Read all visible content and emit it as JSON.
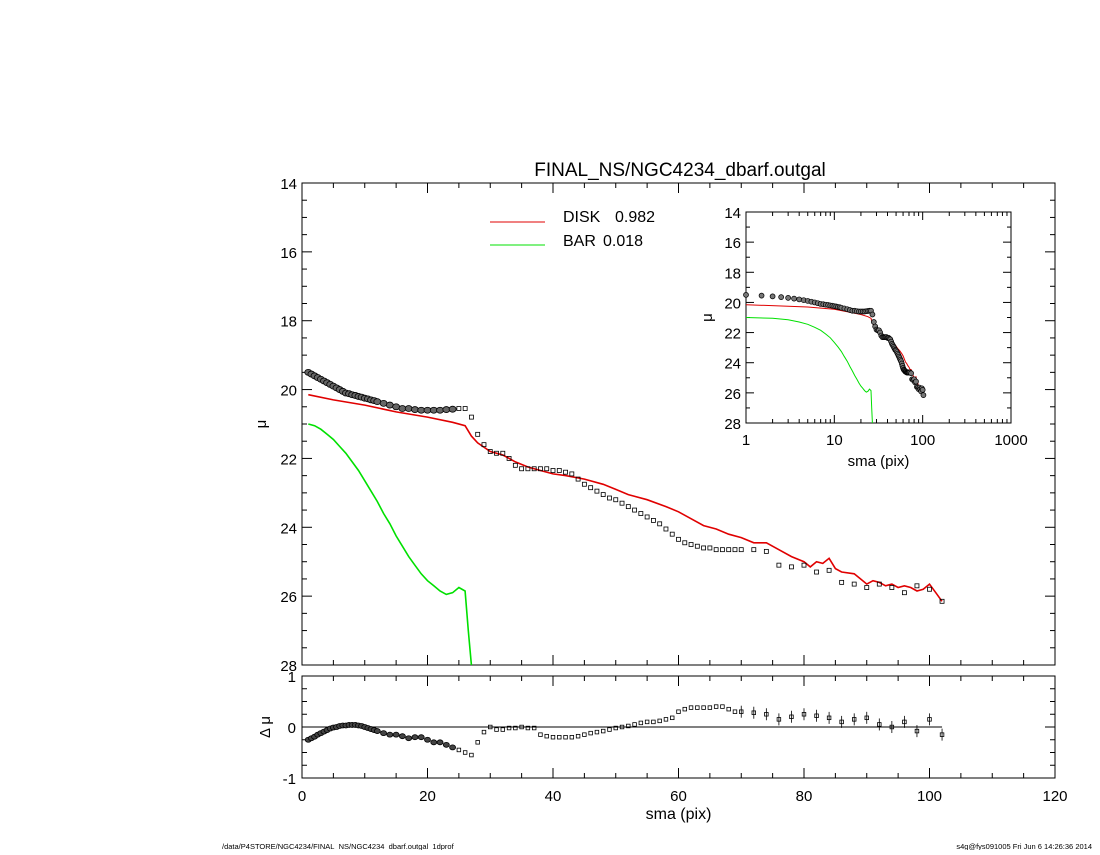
{
  "colors": {
    "disk": "#e00000",
    "bar": "#00e000",
    "data": "#000000",
    "frame": "#000000"
  },
  "footer": {
    "left": "/data/P4STORE/NGC4234/FINAL_NS/NGC4234_dbarf.outgal_1dprof",
    "right": "s4g@fys091005  Fri Jun  6 14:26:36 2014"
  },
  "chart_data": [
    {
      "id": "main",
      "type": "scatter",
      "title": "FINAL_NS/NGC4234_dbarf.outgal",
      "xlabel": "",
      "ylabel": "μ",
      "xlim": [
        0,
        120
      ],
      "ylim": [
        28,
        14
      ],
      "y_reversed": true,
      "yticks": [
        14,
        16,
        18,
        20,
        22,
        24,
        26,
        28
      ],
      "grid": false,
      "legend_placement": "top-center",
      "legend": [
        {
          "label": "DISK",
          "value": "0.982",
          "series": "disk"
        },
        {
          "label": "BAR",
          "value": "0.018",
          "series": "bar"
        }
      ],
      "series": [
        {
          "name": "data",
          "style": "points",
          "x": [
            1,
            1.5,
            2,
            2.5,
            3,
            3.5,
            4,
            4.5,
            5,
            5.5,
            6,
            6.5,
            7,
            7.5,
            8,
            8.5,
            9,
            9.5,
            10,
            10.5,
            11,
            11.5,
            12,
            13,
            14,
            15,
            16,
            17,
            18,
            19,
            20,
            21,
            22,
            23,
            24,
            25,
            26,
            27,
            28,
            29,
            30,
            31,
            32,
            33,
            34,
            35,
            36,
            37,
            38,
            39,
            40,
            41,
            42,
            43,
            44,
            45,
            46,
            47,
            48,
            49,
            50,
            51,
            52,
            53,
            54,
            55,
            56,
            57,
            58,
            59,
            60,
            61,
            62,
            63,
            64,
            65,
            66,
            67,
            68,
            69,
            70,
            72,
            74,
            76,
            78,
            80,
            82,
            84,
            86,
            88,
            90,
            92,
            94,
            96,
            98,
            100,
            102
          ],
          "y": [
            19.5,
            19.55,
            19.6,
            19.65,
            19.7,
            19.75,
            19.8,
            19.85,
            19.9,
            19.95,
            20.0,
            20.05,
            20.1,
            20.12,
            20.15,
            20.17,
            20.2,
            20.22,
            20.25,
            20.27,
            20.3,
            20.32,
            20.35,
            20.4,
            20.45,
            20.5,
            20.55,
            20.55,
            20.58,
            20.6,
            20.6,
            20.6,
            20.6,
            20.58,
            20.57,
            20.55,
            20.55,
            20.8,
            21.3,
            21.6,
            21.8,
            21.85,
            21.85,
            22.0,
            22.2,
            22.3,
            22.3,
            22.3,
            22.3,
            22.3,
            22.35,
            22.35,
            22.4,
            22.45,
            22.6,
            22.75,
            22.85,
            22.95,
            23.05,
            23.15,
            23.2,
            23.3,
            23.4,
            23.5,
            23.6,
            23.7,
            23.8,
            23.9,
            24.05,
            24.2,
            24.35,
            24.45,
            24.5,
            24.55,
            24.6,
            24.6,
            24.65,
            24.65,
            24.65,
            24.65,
            24.65,
            24.65,
            24.7,
            25.1,
            25.15,
            25.1,
            25.3,
            25.25,
            25.6,
            25.65,
            25.75,
            25.65,
            25.75,
            25.9,
            25.7,
            25.8,
            26.15
          ]
        },
        {
          "name": "disk",
          "style": "line",
          "x": [
            1,
            5,
            10,
            15,
            20,
            24,
            26,
            27,
            28,
            30,
            32,
            34,
            36,
            38,
            40,
            42,
            45,
            48,
            50,
            52,
            55,
            58,
            60,
            62,
            64,
            66,
            68,
            70,
            72,
            74,
            76,
            78,
            80,
            81,
            82,
            83,
            84,
            85,
            86,
            88,
            89,
            90,
            91,
            92,
            93,
            94,
            95,
            96,
            97,
            98,
            99,
            100,
            101,
            102
          ],
          "y": [
            20.15,
            20.3,
            20.45,
            20.65,
            20.8,
            20.95,
            21.05,
            21.35,
            21.55,
            21.8,
            21.9,
            22.1,
            22.25,
            22.35,
            22.45,
            22.5,
            22.6,
            22.75,
            22.9,
            23.05,
            23.2,
            23.4,
            23.55,
            23.75,
            23.95,
            24.05,
            24.2,
            24.3,
            24.45,
            24.45,
            24.65,
            24.85,
            25.0,
            25.15,
            25.0,
            25.05,
            24.9,
            25.2,
            25.3,
            25.35,
            25.5,
            25.65,
            25.55,
            25.6,
            25.7,
            25.65,
            25.75,
            25.7,
            25.75,
            25.85,
            25.8,
            25.65,
            25.9,
            26.15
          ]
        },
        {
          "name": "bar",
          "style": "line",
          "x": [
            1,
            2,
            3,
            4,
            5,
            6,
            7,
            8,
            9,
            10,
            11,
            12,
            13,
            14,
            15,
            16,
            17,
            18,
            19,
            20,
            21,
            22,
            23,
            24,
            25,
            26,
            26.5,
            27
          ],
          "y": [
            21.0,
            21.05,
            21.15,
            21.3,
            21.45,
            21.65,
            21.85,
            22.1,
            22.35,
            22.65,
            22.95,
            23.25,
            23.6,
            23.9,
            24.25,
            24.55,
            24.85,
            25.1,
            25.35,
            25.55,
            25.7,
            25.85,
            25.95,
            25.9,
            25.75,
            25.85,
            27.0,
            28.0
          ]
        }
      ]
    },
    {
      "id": "inset",
      "type": "scatter",
      "title": "",
      "xlabel": "sma (pix)",
      "ylabel": "μ",
      "x_scale": "log",
      "xlim": [
        1,
        1000
      ],
      "xticks": [
        1,
        10,
        100,
        1000
      ],
      "ylim": [
        28,
        14
      ],
      "y_reversed": true,
      "yticks": [
        14,
        16,
        18,
        20,
        22,
        24,
        26,
        28
      ],
      "grid": false,
      "shares_series_with": "main"
    },
    {
      "id": "residual",
      "type": "scatter",
      "title": "",
      "xlabel": "sma (pix)",
      "ylabel": "Δ μ",
      "xlim": [
        0,
        120
      ],
      "xticks": [
        0,
        20,
        40,
        60,
        80,
        100,
        120
      ],
      "ylim": [
        -1,
        1
      ],
      "yticks": [
        -1,
        0,
        1
      ],
      "zero_line": true,
      "grid": false,
      "series": [
        {
          "name": "residual",
          "style": "points",
          "x": [
            1,
            1.5,
            2,
            2.5,
            3,
            3.5,
            4,
            4.5,
            5,
            5.5,
            6,
            6.5,
            7,
            7.5,
            8,
            8.5,
            9,
            9.5,
            10,
            10.5,
            11,
            11.5,
            12,
            13,
            14,
            15,
            16,
            17,
            18,
            19,
            20,
            21,
            22,
            23,
            24,
            25,
            26,
            27,
            28,
            29,
            30,
            31,
            32,
            33,
            34,
            35,
            36,
            37,
            38,
            39,
            40,
            41,
            42,
            43,
            44,
            45,
            46,
            47,
            48,
            49,
            50,
            51,
            52,
            53,
            54,
            55,
            56,
            57,
            58,
            59,
            60,
            61,
            62,
            63,
            64,
            65,
            66,
            67,
            68,
            69,
            70,
            72,
            74,
            76,
            78,
            80,
            82,
            84,
            86,
            88,
            90,
            92,
            94,
            96,
            98,
            100,
            102
          ],
          "y": [
            -0.25,
            -0.22,
            -0.19,
            -0.15,
            -0.12,
            -0.09,
            -0.06,
            -0.03,
            -0.01,
            0.0,
            0.02,
            0.03,
            0.03,
            0.04,
            0.04,
            0.04,
            0.03,
            0.02,
            0.0,
            -0.02,
            -0.04,
            -0.06,
            -0.08,
            -0.12,
            -0.15,
            -0.15,
            -0.18,
            -0.22,
            -0.2,
            -0.2,
            -0.25,
            -0.3,
            -0.3,
            -0.35,
            -0.4,
            -0.45,
            -0.5,
            -0.55,
            -0.3,
            -0.1,
            0.0,
            -0.05,
            -0.05,
            -0.02,
            -0.02,
            0.0,
            -0.02,
            -0.02,
            -0.15,
            -0.18,
            -0.2,
            -0.2,
            -0.2,
            -0.2,
            -0.18,
            -0.15,
            -0.12,
            -0.1,
            -0.08,
            -0.05,
            -0.02,
            0.0,
            0.02,
            0.05,
            0.08,
            0.1,
            0.1,
            0.12,
            0.15,
            0.18,
            0.3,
            0.35,
            0.38,
            0.38,
            0.38,
            0.38,
            0.4,
            0.4,
            0.35,
            0.3,
            0.3,
            0.28,
            0.25,
            0.15,
            0.2,
            0.25,
            0.22,
            0.18,
            0.1,
            0.15,
            0.18,
            0.05,
            0.0,
            0.1,
            -0.08,
            0.15,
            -0.15
          ]
        }
      ]
    }
  ]
}
